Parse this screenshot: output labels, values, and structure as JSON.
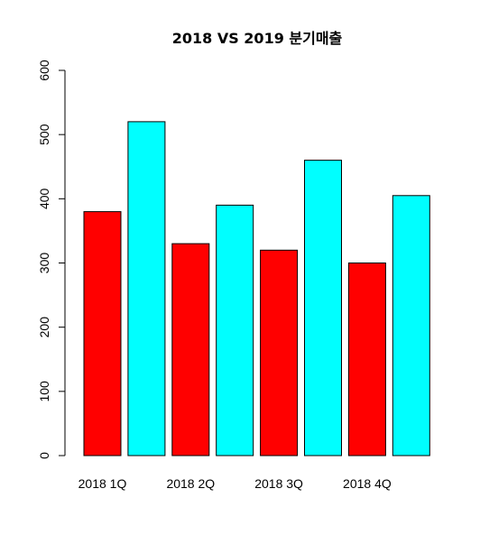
{
  "chart_data": {
    "type": "bar",
    "title": "2018 VS 2019 분기매출",
    "xlabel": "",
    "ylabel": "",
    "ylim": [
      0,
      600
    ],
    "yticks": [
      0,
      100,
      200,
      300,
      400,
      500,
      600
    ],
    "grid": false,
    "legend": "none",
    "x_tick_labels": [
      "2018 1Q",
      "2018 2Q",
      "2018 3Q",
      "2018 4Q"
    ],
    "bar_values": [
      380,
      520,
      330,
      390,
      320,
      460,
      300,
      405
    ],
    "bar_colors": [
      "#ff0000",
      "#00ffff",
      "#ff0000",
      "#00ffff",
      "#ff0000",
      "#00ffff",
      "#ff0000",
      "#00ffff"
    ]
  }
}
